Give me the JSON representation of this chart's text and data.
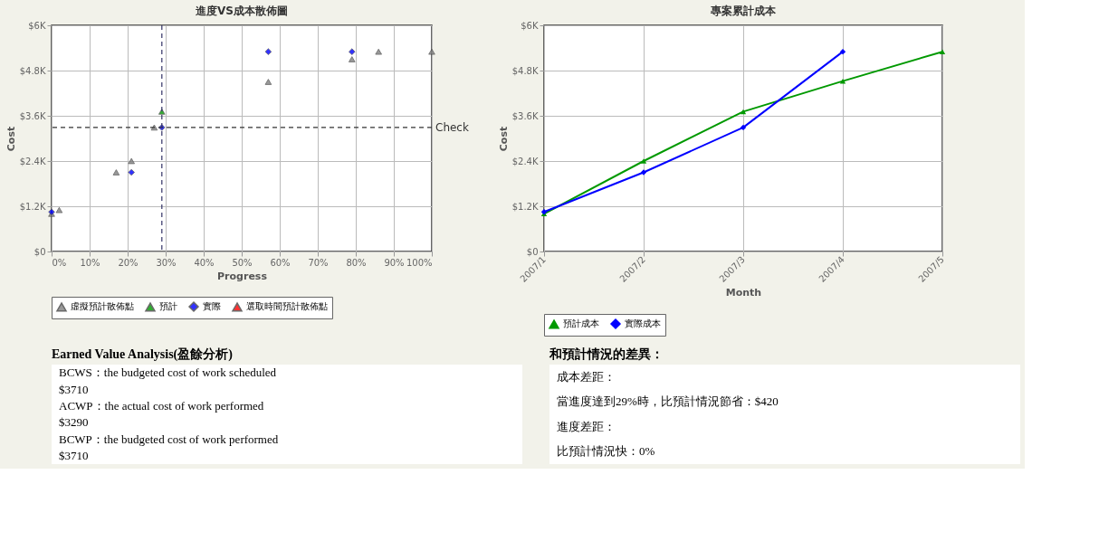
{
  "chart_data": [
    {
      "type": "scatter",
      "title": "進度VS成本散佈圖",
      "xlabel": "Progress",
      "ylabel": "Cost",
      "xlim": [
        0,
        100
      ],
      "xticks": [
        {
          "value": 0,
          "label": "0%"
        },
        {
          "value": 10,
          "label": "10%"
        },
        {
          "value": 20,
          "label": "20%"
        },
        {
          "value": 30,
          "label": "30%"
        },
        {
          "value": 40,
          "label": "40%"
        },
        {
          "value": 50,
          "label": "50%"
        },
        {
          "value": 60,
          "label": "60%"
        },
        {
          "value": 70,
          "label": "70%"
        },
        {
          "value": 80,
          "label": "80%"
        },
        {
          "value": 90,
          "label": "90%"
        },
        {
          "value": 100,
          "label": "100%"
        }
      ],
      "ylim": [
        0,
        6000
      ],
      "yticks": [
        {
          "value": 0,
          "label": "$0"
        },
        {
          "value": 1200,
          "label": "$1.2K"
        },
        {
          "value": 2400,
          "label": "$2.4K"
        },
        {
          "value": 3600,
          "label": "$3.6K"
        },
        {
          "value": 4800,
          "label": "$4.8K"
        },
        {
          "value": 6000,
          "label": "$6K"
        }
      ],
      "series": [
        {
          "name": "虛擬預計散佈點",
          "color": "#808080",
          "marker": "triangle",
          "x": [
            0,
            2,
            17,
            21,
            27,
            57,
            79,
            86,
            100
          ],
          "values": [
            1000,
            1100,
            2100,
            2400,
            3290,
            4500,
            5100,
            5300,
            5300
          ]
        },
        {
          "name": "預計",
          "color": "#009900",
          "marker": "triangle",
          "x": [
            29
          ],
          "values": [
            3710
          ]
        },
        {
          "name": "實際",
          "color": "#0000ff",
          "marker": "diamond",
          "x": [
            0,
            21,
            29,
            57,
            79
          ],
          "values": [
            1050,
            2100,
            3290,
            5300,
            5300
          ]
        },
        {
          "name": "選取時間預計散佈點",
          "color": "#ff0000",
          "marker": "triangle"
        }
      ],
      "ref_lines": [
        {
          "axis": "x",
          "value": 29,
          "color": "#333366",
          "line_style": "dashed"
        },
        {
          "axis": "y",
          "value": 3290,
          "label": "Check",
          "color": "#333333",
          "line_style": "dashed"
        }
      ],
      "grid": true,
      "legend": "bottom"
    },
    {
      "type": "line",
      "title": "專案累計成本",
      "xlabel": "Month",
      "ylabel": "Cost",
      "categories": [
        "2007/1",
        "2007/2",
        "2007/3",
        "2007/4",
        "2007/5"
      ],
      "ylim": [
        0,
        6000
      ],
      "yticks": [
        {
          "value": 0,
          "label": "$0"
        },
        {
          "value": 1200,
          "label": "$1.2K"
        },
        {
          "value": 2400,
          "label": "$2.4K"
        },
        {
          "value": 3600,
          "label": "$3.6K"
        },
        {
          "value": 4800,
          "label": "$4.8K"
        },
        {
          "value": 6000,
          "label": "$6K"
        }
      ],
      "series": [
        {
          "name": "預計成本",
          "color": "#009900",
          "marker": "triangle",
          "values": [
            1000,
            2400,
            3710,
            4520,
            5300
          ]
        },
        {
          "name": "實際成本",
          "color": "#0000ff",
          "marker": "diamond",
          "values": [
            1050,
            2100,
            3290,
            5300,
            null
          ]
        }
      ],
      "grid": true,
      "legend": "bottom",
      "line_style": "solid"
    },
    {
      "type": "other",
      "title": "Earned Value Analysis(盈餘分析)",
      "annotations": [
        "BCWS：the budgeted cost of work scheduled",
        "$3710",
        "ACWP：the actual cost of work performed",
        "$3290",
        "BCWP：the budgeted cost of work performed",
        "$3710"
      ]
    },
    {
      "type": "other",
      "title": "和預計情況的差異：",
      "annotations": [
        "成本差距：",
        "當進度達到29%時，比預計情況節省：$420",
        "進度差距：",
        "比預計情況快：0%"
      ]
    }
  ]
}
